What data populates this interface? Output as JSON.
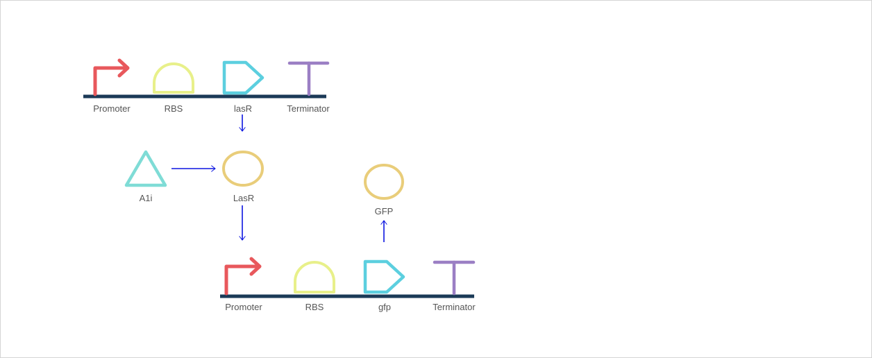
{
  "construct_1": {
    "labels": [
      "Promoter",
      "RBS",
      "lasR",
      "Terminator"
    ]
  },
  "signal": {
    "inducer_label": "A1i",
    "protein_label": "LasR"
  },
  "construct_2": {
    "labels": [
      "Promoter",
      "RBS",
      "gfp",
      "Terminator"
    ]
  },
  "output": {
    "protein_label": "GFP"
  },
  "colors": {
    "backbone": "#1b3a57",
    "promoter": "#e8585c",
    "rbs": "#e8f08a",
    "cds": "#5ccfdf",
    "terminator": "#9b7fc4",
    "protein": "#e9cd7a",
    "inducer": "#7fdcd6",
    "arrow": "#0b14e0"
  }
}
